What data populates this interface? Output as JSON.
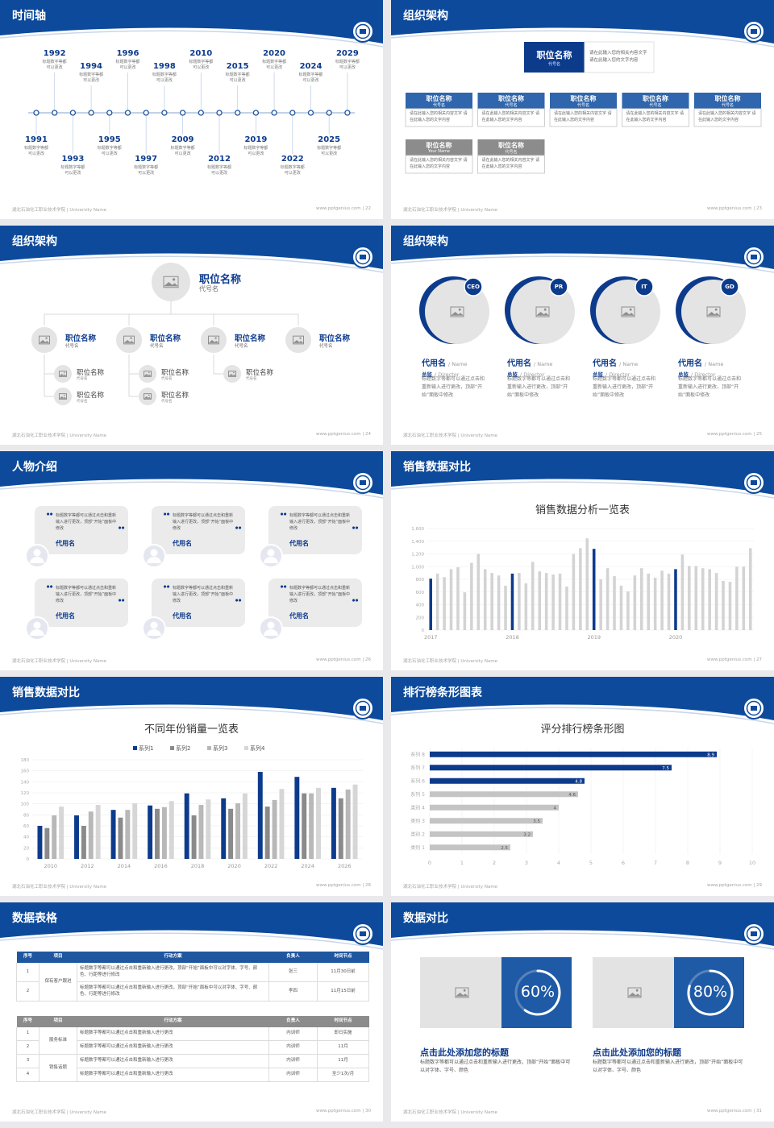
{
  "slides": [
    {
      "title": "时间轴",
      "footer_left": "湖北石油化工职业技术学院 | University Name",
      "footer_right": "www.pptgenius.com | 22",
      "timeline": [
        {
          "year": "1991",
          "text": "标题数字等都可以更改"
        },
        {
          "year": "1992",
          "text": "标题数字等都可以更改"
        },
        {
          "year": "1993",
          "text": "标题数字等都可以更改"
        },
        {
          "year": "1994",
          "text": "标题数字等都可以更改"
        },
        {
          "year": "1995",
          "text": "标题数字等都可以更改"
        },
        {
          "year": "1996",
          "text": "标题数字等都可以更改"
        },
        {
          "year": "1997",
          "text": "标题数字等都可以更改"
        },
        {
          "year": "1998",
          "text": "标题数字等都可以更改"
        },
        {
          "year": "2009",
          "text": "标题数字等都可以更改"
        },
        {
          "year": "2010",
          "text": "标题数字等都可以更改"
        },
        {
          "year": "2012",
          "text": "标题数字等都可以更改"
        },
        {
          "year": "2015",
          "text": "标题数字等都可以更改"
        },
        {
          "year": "2019",
          "text": "标题数字等都可以更改"
        },
        {
          "year": "2020",
          "text": "标题数字等都可以更改"
        },
        {
          "year": "2022",
          "text": "标题数字等都可以更改"
        },
        {
          "year": "2024",
          "text": "标题数字等都可以更改"
        },
        {
          "year": "2025",
          "text": "标题数字等都可以更改"
        },
        {
          "year": "2029",
          "text": "标题数字等都可以更改"
        }
      ]
    },
    {
      "title": "组织架构",
      "footer_left": "湖北石油化工职业技术学院 | University Name",
      "footer_right": "www.pptgenius.com | 23",
      "head": {
        "name": "职位名称",
        "code": "代号名",
        "text": "请在此输入您的相关内容文字 请在此输入您的文字内容"
      },
      "boxes": [
        {
          "name": "职位名称",
          "code": "代号名",
          "text": "请在此输入您的相关内容文字 请在此输入您的文字内容",
          "color": "#2f66ad"
        },
        {
          "name": "职位名称",
          "code": "代号名",
          "text": "请在此输入您的相关内容文字 请在此输入您的文字内容",
          "color": "#2f66ad"
        },
        {
          "name": "职位名称",
          "code": "代号名",
          "text": "请在此输入您的相关内容文字 请在此输入您的文字内容",
          "color": "#2f66ad"
        },
        {
          "name": "职位名称",
          "code": "代号名",
          "text": "请在此输入您的相关内容文字 请在此输入您的文字内容",
          "color": "#2f66ad"
        },
        {
          "name": "职位名称",
          "code": "代号名",
          "text": "请在此输入您的相关内容文字 请在此输入您的文字内容",
          "color": "#2f66ad"
        },
        {
          "name": "职位名称",
          "code": "Your Name",
          "text": "请在此输入您的相关内容文字 请在此输入您的文字内容",
          "color": "#8c8c8c"
        },
        {
          "name": "职位名称",
          "code": "代号名",
          "text": "请在此输入您的相关内容文字 请在此输入您的文字内容",
          "color": "#8c8c8c"
        }
      ]
    },
    {
      "title": "组织架构",
      "footer_left": "湖北石油化工职业技术学院 | University Name",
      "footer_right": "www.pptgenius.com | 24",
      "top": {
        "name": "职位名称",
        "code": "代号名"
      },
      "branches": [
        {
          "name": "职位名称",
          "code": "代号名",
          "children": [
            {
              "name": "职位名称",
              "code": "代号名"
            },
            {
              "name": "职位名称",
              "code": "代号名"
            }
          ]
        },
        {
          "name": "职位名称",
          "code": "代号名",
          "children": [
            {
              "name": "职位名称",
              "code": "代号名"
            },
            {
              "name": "职位名称",
              "code": "代号名"
            }
          ]
        },
        {
          "name": "职位名称",
          "code": "代号名",
          "children": [
            {
              "name": "职位名称",
              "code": "代号名"
            }
          ]
        },
        {
          "name": "职位名称",
          "code": "代号名",
          "children": []
        }
      ]
    },
    {
      "title": "组织架构",
      "footer_left": "湖北石油化工职业技术学院 | University Name",
      "footer_right": "www.pptgenius.com | 25",
      "cards": [
        {
          "badge": "CEO",
          "name": "代用名",
          "name_en": "/ Name",
          "role": "总监",
          "role_en": "/ Director",
          "text": "标题数字等都可以通过点击和重新输入进行更改，顶部“开始”面板中修改"
        },
        {
          "badge": "PR",
          "name": "代用名",
          "name_en": "/ Name",
          "role": "总监",
          "role_en": "/ Director",
          "text": "标题数字等都可以通过点击和重新输入进行更改，顶部“开始”面板中修改"
        },
        {
          "badge": "IT",
          "name": "代用名",
          "name_en": "/ Name",
          "role": "总监",
          "role_en": "/ Director",
          "text": "标题数字等都可以通过点击和重新输入进行更改，顶部“开始”面板中修改"
        },
        {
          "badge": "GD",
          "name": "代用名",
          "name_en": "/ Name",
          "role": "总监",
          "role_en": "/ Director",
          "text": "标题数字等都可以通过点击和重新输入进行更改，顶部“开始”面板中修改"
        }
      ]
    },
    {
      "title": "人物介绍",
      "footer_left": "湖北石油化工职业技术学院 | University Name",
      "footer_right": "www.pptgenius.com | 26",
      "quotes": [
        {
          "text": "标题数字等都可以通过点击和重新输入进行更改，顶部“开始”面板中修改",
          "name": "代用名"
        },
        {
          "text": "标题数字等都可以通过点击和重新输入进行更改，顶部“开始”面板中修改",
          "name": "代用名"
        },
        {
          "text": "标题数字等都可以通过点击和重新输入进行更改，顶部“开始”面板中修改",
          "name": "代用名"
        },
        {
          "text": "标题数字等都可以通过点击和重新输入进行更改，顶部“开始”面板中修改",
          "name": "代用名"
        },
        {
          "text": "标题数字等都可以通过点击和重新输入进行更改，顶部“开始”面板中修改",
          "name": "代用名"
        },
        {
          "text": "标题数字等都可以通过点击和重新输入进行更改，顶部“开始”面板中修改",
          "name": "代用名"
        }
      ]
    },
    {
      "title": "销售数据对比",
      "footer_left": "湖北石油化工职业技术学院 | University Name",
      "footer_right": "www.pptgenius.com | 27"
    },
    {
      "title": "销售数据对比",
      "footer_left": "湖北石油化工职业技术学院 | University Name",
      "footer_right": "www.pptgenius.com | 28"
    },
    {
      "title": "排行榜条形图表",
      "footer_left": "湖北石油化工职业技术学院 | University Name",
      "footer_right": "www.pptgenius.com | 29"
    },
    {
      "title": "数据表格",
      "footer_left": "湖北石油化工职业技术学院 | University Name",
      "footer_right": "www.pptgenius.com | 30",
      "tables": [
        {
          "header": [
            "序号",
            "项目",
            "行动方案",
            "负责人",
            "时间节点"
          ],
          "header_color": "#1f56a0",
          "groups": [
            {
              "item": "保有客户跟进",
              "rows": [
                [
                  "1",
                  "标题数字等都可以通过点击和重新输入进行更改，顶部“开始”面板中可以对字体、字号、颜色、行距等进行修改",
                  "张三",
                  "11月30日前"
                ],
                [
                  "2",
                  "标题数字等都可以通过点击和重新输入进行更改，顶部“开始”面板中可以对字体、字号、颜色、行距等进行修改",
                  "李四",
                  "11月15日前"
                ]
              ]
            }
          ]
        },
        {
          "header": [
            "序号",
            "项目",
            "行动方案",
            "负责人",
            "时间节点"
          ],
          "header_color": "#8c8c8c",
          "groups": [
            {
              "item": "服务标准",
              "rows": [
                [
                  "1",
                  "标题数字等都可以通过点击和重新输入进行更改",
                  "内训师",
                  "即日实施"
                ],
                [
                  "2",
                  "标题数字等都可以通过点击和重新输入进行更改",
                  "内训师",
                  "11月"
                ]
              ]
            },
            {
              "item": "销售话题",
              "rows": [
                [
                  "3",
                  "标题数字等都可以通过点击和重新输入进行更改",
                  "内训师",
                  "11月"
                ],
                [
                  "4",
                  "标题数字等都可以通过点击和重新输入进行更改",
                  "内训师",
                  "至少1次/月"
                ]
              ]
            }
          ]
        }
      ]
    },
    {
      "title": "数据对比",
      "footer_left": "湖北石油化工职业技术学院 | University Name",
      "footer_right": "www.pptgenius.com | 31",
      "cards": [
        {
          "value": 60,
          "value_label": "60%",
          "title": "点击此处添加您的标题",
          "text": "标题数字等都可以通过点击和重新输入进行更改，顶部“开始”面板中可以对字体、字号、颜色"
        },
        {
          "value": 80,
          "value_label": "80%",
          "title": "点击此处添加您的标题",
          "text": "标题数字等都可以通过点击和重新输入进行更改，顶部“开始”面板中可以对字体、字号、颜色"
        }
      ]
    }
  ],
  "chart_data": [
    {
      "type": "bar",
      "title": "销售数据分析一览表",
      "categories": [
        "2017",
        null,
        null,
        null,
        null,
        null,
        null,
        null,
        null,
        null,
        null,
        null,
        "2018",
        null,
        null,
        null,
        null,
        null,
        null,
        null,
        null,
        null,
        null,
        null,
        "2019",
        null,
        null,
        null,
        null,
        null,
        null,
        null,
        null,
        null,
        null,
        null,
        "2020",
        null,
        null,
        null,
        null,
        null,
        null,
        null,
        null,
        null,
        null,
        null
      ],
      "values": [
        810,
        890,
        835,
        960,
        990,
        595,
        1060,
        1200,
        960,
        900,
        860,
        700,
        890,
        900,
        735,
        1075,
        925,
        900,
        875,
        890,
        685,
        1200,
        1290,
        1445,
        1280,
        800,
        975,
        850,
        700,
        610,
        860,
        975,
        890,
        825,
        935,
        890,
        960,
        1190,
        1010,
        1010,
        975,
        960,
        900,
        775,
        760,
        1000,
        1000,
        1290
      ],
      "colors": [
        "#0d3b8c",
        "#d3d3d3",
        "#d3d3d3",
        "#d3d3d3",
        "#d3d3d3",
        "#d3d3d3",
        "#d3d3d3",
        "#d3d3d3",
        "#d3d3d3",
        "#d3d3d3",
        "#d3d3d3",
        "#d3d3d3",
        "#0d3b8c",
        "#d3d3d3",
        "#d3d3d3",
        "#d3d3d3",
        "#d3d3d3",
        "#d3d3d3",
        "#d3d3d3",
        "#d3d3d3",
        "#d3d3d3",
        "#d3d3d3",
        "#d3d3d3",
        "#d3d3d3",
        "#0d3b8c",
        "#d3d3d3",
        "#d3d3d3",
        "#d3d3d3",
        "#d3d3d3",
        "#d3d3d3",
        "#d3d3d3",
        "#d3d3d3",
        "#d3d3d3",
        "#d3d3d3",
        "#d3d3d3",
        "#d3d3d3",
        "#0d3b8c",
        "#d3d3d3",
        "#d3d3d3",
        "#d3d3d3",
        "#d3d3d3",
        "#d3d3d3",
        "#d3d3d3",
        "#d3d3d3",
        "#d3d3d3",
        "#d3d3d3",
        "#d3d3d3",
        "#d3d3d3"
      ],
      "ylim": [
        0,
        1600
      ],
      "yticks": [
        0,
        200,
        400,
        600,
        800,
        {
          "value": 1000,
          "label": "1,000"
        },
        {
          "value": 1200,
          "label": "1,200"
        },
        {
          "value": 1400,
          "label": "1,400"
        },
        {
          "value": 1600,
          "label": "1,600"
        }
      ],
      "grid": true
    },
    {
      "type": "bar",
      "title": "不同年份销量一览表",
      "categories": [
        "2010",
        "2012",
        "2014",
        "2016",
        "2018",
        "2020",
        "2022",
        "2024",
        "2026"
      ],
      "series": [
        {
          "name": "系列1",
          "color": "#0d3b8c",
          "values": [
            60,
            79,
            89,
            97,
            119,
            110,
            158,
            149,
            129
          ]
        },
        {
          "name": "系列2",
          "color": "#8a8a8a",
          "values": [
            56,
            60,
            75,
            91,
            79,
            91,
            95,
            119,
            110
          ]
        },
        {
          "name": "系列3",
          "color": "#b8b8b8",
          "values": [
            79,
            86,
            89,
            94,
            98,
            101,
            107,
            119,
            126
          ]
        },
        {
          "name": "系列4",
          "color": "#d6d6d6",
          "values": [
            95,
            98,
            101,
            105,
            108,
            119,
            127,
            129,
            135
          ]
        }
      ],
      "ylim": [
        0,
        180
      ],
      "yticks": [
        0,
        20,
        40,
        60,
        80,
        100,
        120,
        140,
        160,
        180
      ],
      "grid": true,
      "legend": "top"
    },
    {
      "type": "hbar",
      "title": "评分排行榜条形图",
      "categories": [
        "类别 1",
        "类别 2",
        "类别 3",
        "类别 4",
        "系列 5",
        "系列 6",
        "系列 7",
        "系列 8"
      ],
      "values": [
        2.5,
        3.2,
        3.5,
        4,
        4.6,
        4.8,
        7.5,
        8.9
      ],
      "colors": [
        "#c4c4c4",
        "#c4c4c4",
        "#c4c4c4",
        "#c4c4c4",
        "#c4c4c4",
        "#0d3b8c",
        "#0d3b8c",
        "#0d3b8c"
      ],
      "xlim": [
        0,
        10
      ],
      "xticks": [
        0,
        1,
        2,
        3,
        4,
        5,
        6,
        7,
        8,
        9,
        10
      ],
      "grid": true
    }
  ]
}
